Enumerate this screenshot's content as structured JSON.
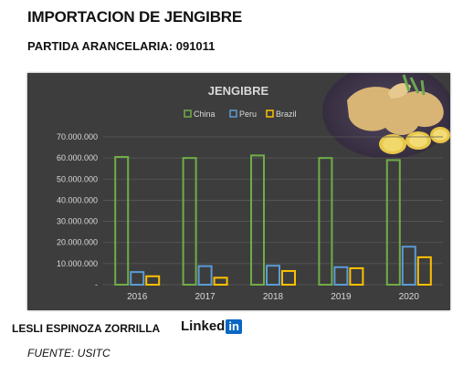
{
  "header": {
    "title": "IMPORTACION DE JENGIBRE",
    "subtitle": "PARTIDA ARANCELARIA: 091011"
  },
  "footer": {
    "author": "LESLI ESPINOZA ZORRILLA",
    "linkedin_word": "Linked",
    "linkedin_in": "in",
    "source": "FUENTE: USITC"
  },
  "colors": {
    "background": "#3d3d3d",
    "gridline": "#5a5a5a",
    "text": "#d9d9d9"
  },
  "chart_data": {
    "type": "bar",
    "title": "JENGIBRE",
    "categories": [
      "2016",
      "2017",
      "2018",
      "2019",
      "2020"
    ],
    "series": [
      {
        "name": "China",
        "color": "#70ad47",
        "values": [
          60500000,
          60000000,
          61200000,
          60000000,
          59000000
        ]
      },
      {
        "name": "Peru",
        "color": "#5b9bd5",
        "values": [
          6000000,
          8800000,
          9000000,
          8300000,
          18000000
        ]
      },
      {
        "name": "Brazil",
        "color": "#ffc000",
        "values": [
          4000000,
          3300000,
          6500000,
          7800000,
          13000000
        ]
      }
    ],
    "yticks": [
      "-",
      "10.000.000",
      "20.000.000",
      "30.000.000",
      "40.000.000",
      "50.000.000",
      "60.000.000",
      "70.000.000"
    ],
    "ylim": [
      0,
      70000000
    ],
    "legend_position": "top",
    "grid": true,
    "image": "ginger-root-photo"
  }
}
